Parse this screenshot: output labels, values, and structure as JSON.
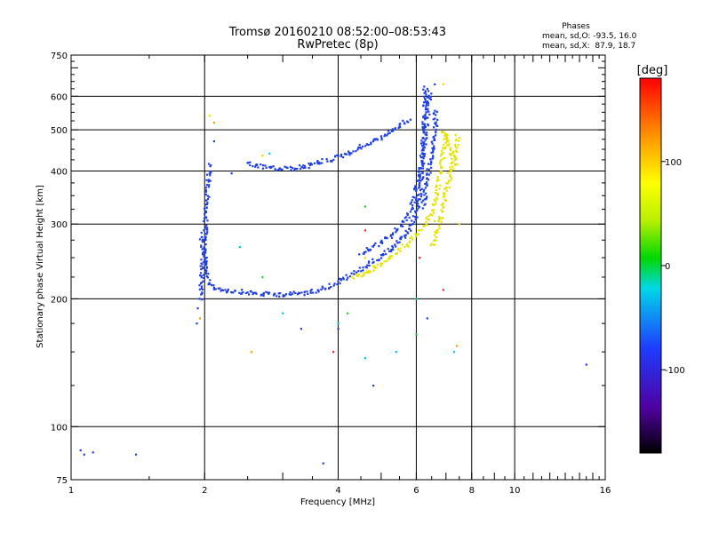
{
  "chart_data": {
    "type": "scatter",
    "title": "Tromsø 20160210 08:52:00–08:53:43",
    "subtitle": "RwPretec (8p)",
    "xlabel": "Frequency [MHz]",
    "ylabel": "Stationary phase Virtual Height [km]",
    "x_scale": "log",
    "y_scale": "log",
    "xlim": [
      1,
      16
    ],
    "ylim": [
      75,
      750
    ],
    "grid": true,
    "x_tick_labels": [
      "1",
      "2",
      "4",
      "6",
      "8",
      "10",
      "16"
    ],
    "x_tick_values": [
      1,
      2,
      4,
      6,
      8,
      10,
      16
    ],
    "y_tick_labels": [
      "75",
      "100",
      "200",
      "300",
      "400",
      "500",
      "600",
      "750"
    ],
    "y_tick_values": [
      75,
      100,
      200,
      300,
      400,
      500,
      600,
      750
    ],
    "phase_stats": {
      "heading": "Phases",
      "line_o": "mean, sd,O: -93.5, 16.0",
      "line_x": "mean, sd,X:  87.9, 18.7"
    },
    "colorbar": {
      "label": "[deg]",
      "range": [
        -180,
        180
      ],
      "tick_labels": [
        "100",
        "0",
        "-100"
      ],
      "tick_values": [
        100,
        0,
        -100
      ]
    },
    "series": [
      {
        "phase": -95,
        "color": "#1f3fe0",
        "segments": [
          [
            [
              1.96,
              285
            ],
            [
              1.98,
              265
            ],
            [
              2.0,
              250
            ],
            [
              2.02,
              230
            ],
            [
              2.05,
              218
            ],
            [
              2.1,
              213
            ],
            [
              2.2,
              210
            ],
            [
              2.4,
              208
            ],
            [
              2.6,
              206
            ],
            [
              2.8,
              205
            ],
            [
              3.0,
              205
            ],
            [
              3.3,
              206
            ],
            [
              3.6,
              210
            ],
            [
              3.9,
              216
            ],
            [
              4.2,
              225
            ],
            [
              4.5,
              235
            ],
            [
              4.8,
              245
            ],
            [
              5.1,
              256
            ],
            [
              5.4,
              268
            ],
            [
              5.7,
              283
            ],
            [
              5.9,
              300
            ],
            [
              6.05,
              330
            ],
            [
              6.15,
              380
            ],
            [
              6.2,
              440
            ],
            [
              6.25,
              520
            ],
            [
              6.28,
              600
            ],
            [
              6.3,
              640
            ]
          ],
          [
            [
              1.95,
              200
            ],
            [
              1.97,
              230
            ],
            [
              1.99,
              260
            ],
            [
              2.01,
              300
            ],
            [
              2.03,
              350
            ],
            [
              2.05,
              400
            ],
            [
              2.07,
              415
            ]
          ],
          [
            [
              2.5,
              415
            ],
            [
              2.7,
              410
            ],
            [
              2.9,
              405
            ],
            [
              3.1,
              405
            ],
            [
              3.4,
              410
            ],
            [
              3.8,
              425
            ],
            [
              4.2,
              440
            ],
            [
              4.6,
              460
            ],
            [
              5.0,
              480
            ],
            [
              5.4,
              505
            ],
            [
              5.8,
              530
            ]
          ],
          [
            [
              4.5,
              255
            ],
            [
              4.9,
              268
            ],
            [
              5.2,
              280
            ],
            [
              5.5,
              295
            ],
            [
              5.75,
              315
            ],
            [
              5.95,
              345
            ],
            [
              6.1,
              390
            ],
            [
              6.25,
              460
            ],
            [
              6.35,
              540
            ],
            [
              6.45,
              620
            ]
          ],
          [
            [
              6.2,
              330
            ],
            [
              6.35,
              380
            ],
            [
              6.5,
              440
            ],
            [
              6.6,
              500
            ],
            [
              6.65,
              560
            ]
          ]
        ],
        "points": [
          [
            1.05,
            88
          ],
          [
            1.07,
            86
          ],
          [
            1.12,
            87
          ],
          [
            1.4,
            86
          ],
          [
            1.92,
            175
          ],
          [
            1.93,
            190
          ],
          [
            2.1,
            470
          ],
          [
            2.3,
            395
          ],
          [
            3.3,
            170
          ],
          [
            3.7,
            82
          ],
          [
            4.0,
            170
          ],
          [
            4.8,
            125
          ],
          [
            6.35,
            180
          ],
          [
            6.6,
            640
          ],
          [
            14.5,
            140
          ]
        ]
      },
      {
        "phase": 88,
        "color": "#e4e400",
        "segments": [
          [
            [
              4.3,
              225
            ],
            [
              4.6,
              230
            ],
            [
              4.9,
              238
            ],
            [
              5.2,
              248
            ],
            [
              5.5,
              260
            ],
            [
              5.8,
              272
            ],
            [
              6.05,
              285
            ],
            [
              6.3,
              300
            ],
            [
              6.5,
              320
            ],
            [
              6.65,
              350
            ],
            [
              6.75,
              385
            ],
            [
              6.85,
              420
            ],
            [
              6.95,
              460
            ],
            [
              7.0,
              495
            ]
          ],
          [
            [
              6.5,
              265
            ],
            [
              6.7,
              290
            ],
            [
              6.9,
              330
            ],
            [
              7.05,
              370
            ],
            [
              7.2,
              410
            ],
            [
              7.35,
              450
            ],
            [
              7.45,
              490
            ]
          ],
          [
            [
              6.9,
              500
            ],
            [
              7.05,
              470
            ],
            [
              7.2,
              440
            ],
            [
              7.4,
              410
            ]
          ]
        ],
        "points": [
          [
            2.05,
            540
          ],
          [
            2.7,
            435
          ],
          [
            4.6,
            250
          ],
          [
            6.6,
            305
          ],
          [
            7.5,
            300
          ],
          [
            6.9,
            640
          ]
        ]
      },
      {
        "phase": -20,
        "color": "#00c8d8",
        "segments": [],
        "points": [
          [
            2.4,
            265
          ],
          [
            2.8,
            440
          ],
          [
            3.0,
            185
          ],
          [
            4.6,
            145
          ],
          [
            5.4,
            150
          ],
          [
            6.0,
            200
          ],
          [
            7.3,
            150
          ],
          [
            4.0,
            175
          ]
        ]
      },
      {
        "phase": 40,
        "color": "#30c030",
        "segments": [],
        "points": [
          [
            2.7,
            225
          ],
          [
            4.6,
            330
          ],
          [
            4.2,
            185
          ],
          [
            6.0,
            165
          ]
        ]
      },
      {
        "phase": 150,
        "color": "#e83020",
        "segments": [],
        "points": [
          [
            4.6,
            290
          ],
          [
            3.9,
            150
          ],
          [
            6.9,
            210
          ],
          [
            6.1,
            250
          ]
        ]
      },
      {
        "phase": 125,
        "color": "#f0a000",
        "segments": [],
        "points": [
          [
            1.95,
            180
          ],
          [
            2.55,
            150
          ],
          [
            2.1,
            520
          ],
          [
            7.4,
            155
          ]
        ]
      }
    ]
  }
}
